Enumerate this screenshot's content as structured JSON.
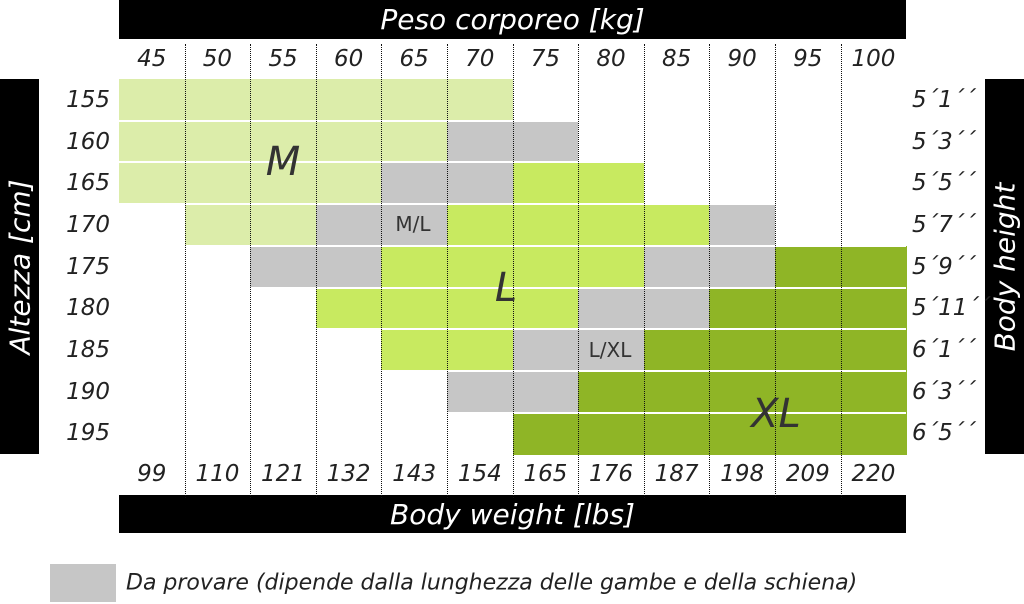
{
  "chart_data": {
    "type": "heatmap",
    "title": "Peso corporeo [kg]",
    "xlabel_bottom": "Body weight [lbs]",
    "ylabel_left": "Altezza [cm]",
    "ylabel_right": "Body height",
    "x_kg": [
      "45",
      "50",
      "55",
      "60",
      "65",
      "70",
      "75",
      "80",
      "85",
      "90",
      "95",
      "100"
    ],
    "x_lbs": [
      "99",
      "110",
      "121",
      "132",
      "143",
      "154",
      "165",
      "176",
      "187",
      "198",
      "209",
      "220"
    ],
    "y_cm": [
      "155",
      "160",
      "165",
      "170",
      "175",
      "180",
      "185",
      "190",
      "195"
    ],
    "y_ft": [
      "5´1´´",
      "5´3´´",
      "5´5´´",
      "5´7´´",
      "5´9´´",
      "5´11´´",
      "6´1´´",
      "6´3´´",
      "6´5´´"
    ],
    "grid": [
      [
        "M",
        "M",
        "M",
        "M",
        "M",
        "M",
        "",
        "",
        "",
        "",
        "",
        ""
      ],
      [
        "M",
        "M",
        "M",
        "M",
        "M",
        "M/L",
        "M/L",
        "",
        "",
        "",
        "",
        ""
      ],
      [
        "M",
        "M",
        "M",
        "M",
        "M/L",
        "M/L",
        "L",
        "L",
        "",
        "",
        "",
        ""
      ],
      [
        "",
        "M",
        "M",
        "M/L",
        "M/L",
        "L",
        "L",
        "L",
        "L",
        "L/XL",
        "",
        ""
      ],
      [
        "",
        "",
        "M/L",
        "M/L",
        "L",
        "L",
        "L",
        "L",
        "L/XL",
        "L/XL",
        "XL",
        "XL"
      ],
      [
        "",
        "",
        "",
        "L",
        "L",
        "L",
        "L",
        "L/XL",
        "L/XL",
        "XL",
        "XL",
        "XL"
      ],
      [
        "",
        "",
        "",
        "",
        "L",
        "L",
        "L/XL",
        "L/XL",
        "XL",
        "XL",
        "XL",
        "XL"
      ],
      [
        "",
        "",
        "",
        "",
        "",
        "L/XL",
        "L/XL",
        "XL",
        "XL",
        "XL",
        "XL",
        "XL"
      ],
      [
        "",
        "",
        "",
        "",
        "",
        "",
        "XL",
        "XL",
        "XL",
        "XL",
        "XL",
        "XL"
      ]
    ],
    "zones": [
      {
        "key": "M",
        "label": "M",
        "color": "#dcedaa"
      },
      {
        "key": "M/L",
        "label": "M/L",
        "color": "#c6c6c6"
      },
      {
        "key": "L",
        "label": "L",
        "color": "#c8ea60"
      },
      {
        "key": "L/XL",
        "label": "L/XL",
        "color": "#c6c6c6"
      },
      {
        "key": "XL",
        "label": "XL",
        "color": "#8fb526"
      }
    ],
    "legend": {
      "color": "#c6c6c6",
      "text": "Da provare (dipende dalla lunghezza delle gambe e della schiena)"
    }
  }
}
